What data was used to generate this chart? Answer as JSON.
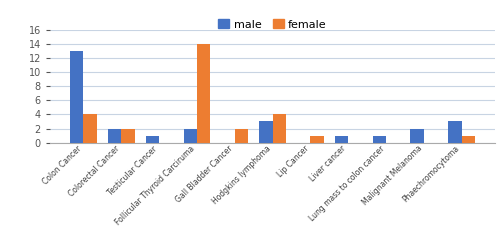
{
  "categories": [
    "Colon Cancer",
    "Colorectal Cancer",
    "Testicular Cancer",
    "Follicular Thyroid Carciruma",
    "Gall Bladder Cancer",
    "Hodgkins lymphoma",
    "Lip Cancer",
    "Liver cancer",
    "Lung mass to colon cancer",
    "Malignant Melanoma",
    "Phaechromocytoma"
  ],
  "male": [
    13,
    2,
    1,
    2,
    0,
    3,
    0,
    1,
    1,
    2,
    3
  ],
  "female": [
    4,
    2,
    0,
    14,
    2,
    4,
    1,
    0,
    0,
    0,
    1
  ],
  "male_color": "#4472C4",
  "female_color": "#ED7D31",
  "ylim": [
    0,
    16
  ],
  "yticks": [
    0,
    2,
    4,
    6,
    8,
    10,
    12,
    14,
    16
  ],
  "bar_width": 0.35,
  "legend_labels": [
    "male",
    "female"
  ],
  "background_color": "#ffffff",
  "grid_color": "#c8d4e3"
}
